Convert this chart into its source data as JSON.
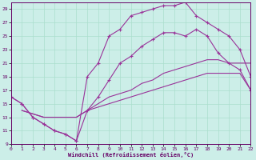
{
  "xlabel": "Windchill (Refroidissement éolien,°C)",
  "bg_color": "#cceee8",
  "line_color": "#993399",
  "grid_color": "#aaddcc",
  "xmin": 0,
  "xmax": 22,
  "ymin": 9,
  "ymax": 30,
  "xticks": [
    0,
    1,
    2,
    3,
    4,
    5,
    6,
    7,
    8,
    9,
    10,
    11,
    12,
    13,
    14,
    15,
    16,
    17,
    18,
    19,
    20,
    21,
    22
  ],
  "yticks": [
    9,
    11,
    13,
    15,
    17,
    19,
    21,
    23,
    25,
    27,
    29
  ],
  "line1_x": [
    0,
    1,
    2,
    3,
    4,
    5,
    6,
    7,
    8,
    9,
    10,
    11,
    12,
    13,
    14,
    15,
    16,
    17,
    18,
    19,
    20,
    21,
    22
  ],
  "line1_y": [
    16,
    15,
    13,
    12,
    11,
    10.5,
    9.5,
    19,
    21,
    25,
    26,
    28,
    28.5,
    29,
    29.5,
    29.5,
    30,
    28,
    27,
    26,
    25,
    23,
    19
  ],
  "line2_x": [
    0,
    1,
    2,
    3,
    4,
    5,
    6,
    7,
    8,
    9,
    10,
    11,
    12,
    13,
    14,
    15,
    16,
    17,
    18,
    19,
    20,
    21,
    22
  ],
  "line2_y": [
    16,
    15,
    13,
    12,
    11,
    10.5,
    9.5,
    14,
    16,
    18.5,
    21,
    22,
    23.5,
    24.5,
    25.5,
    25.5,
    25,
    26,
    25,
    22.5,
    21,
    20,
    17
  ],
  "line3_x": [
    1,
    2,
    3,
    4,
    5,
    6,
    7,
    8,
    9,
    10,
    11,
    12,
    13,
    14,
    15,
    16,
    17,
    18,
    19,
    20,
    21,
    22
  ],
  "line3_y": [
    14,
    13.5,
    13,
    13,
    13,
    13,
    14,
    15,
    16,
    16.5,
    17,
    18,
    18.5,
    19.5,
    20,
    20.5,
    21,
    21.5,
    21.5,
    21,
    21,
    21
  ],
  "line4_x": [
    1,
    2,
    3,
    4,
    5,
    6,
    7,
    8,
    9,
    10,
    11,
    12,
    13,
    14,
    15,
    16,
    17,
    18,
    19,
    20,
    21,
    22
  ],
  "line4_y": [
    14,
    13.5,
    13,
    13,
    13,
    13,
    14,
    14.5,
    15,
    15.5,
    16,
    16.5,
    17,
    17.5,
    18,
    18.5,
    19,
    19.5,
    19.5,
    19.5,
    19.5,
    17
  ]
}
